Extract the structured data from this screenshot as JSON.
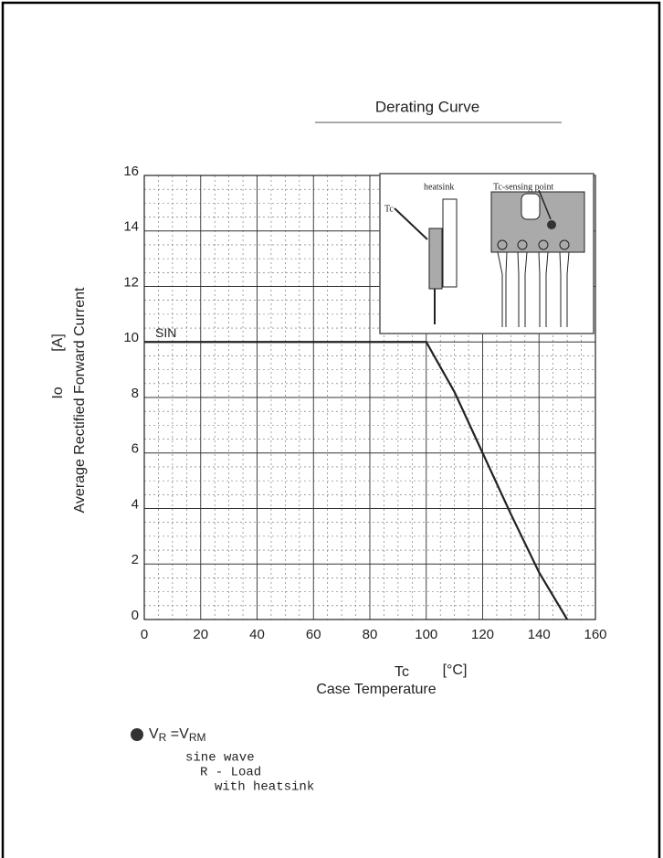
{
  "chart_data": {
    "type": "line",
    "title": "Derating Curve",
    "ylabel_symbol": "Io",
    "ylabel_unit": "[A]",
    "ylabel": "Average Rectified Forward Current",
    "xlabel_symbol": "Tc",
    "xlabel_unit": "[°C]",
    "xlabel": "Case Temperature",
    "series": [
      {
        "name": "SIN",
        "color": "#222222",
        "x": [
          0,
          100,
          110,
          120,
          130,
          140,
          150
        ],
        "values": [
          10,
          10,
          8.2,
          6,
          3.8,
          1.7,
          0
        ]
      }
    ],
    "xlim": [
      0,
      160
    ],
    "xticks": [
      0,
      20,
      40,
      60,
      80,
      100,
      120,
      140,
      160
    ],
    "ylim": [
      0,
      16
    ],
    "yticks": [
      0,
      2,
      4,
      6,
      8,
      10,
      12,
      14,
      16
    ],
    "grid": true,
    "minor_grid": {
      "x": 5,
      "y": 0.5
    },
    "inset": {
      "heatsink": "heatsink",
      "tc": "Tc",
      "sensing": "Tc-sensing point"
    },
    "condition": [
      "V",
      "R",
      " =V",
      "RM"
    ],
    "notes": [
      "sine wave",
      "R - Load",
      "with heatsink"
    ]
  }
}
